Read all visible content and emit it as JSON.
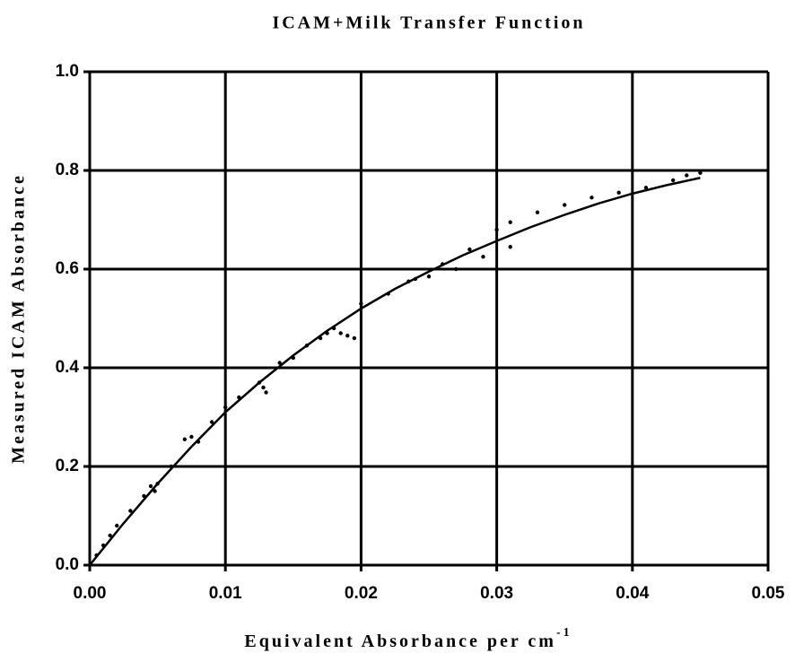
{
  "chart_data": {
    "type": "scatter",
    "title": "ICAM+Milk Transfer Function",
    "xlabel": "Equivalent Absorbance per cm",
    "xlabel_superscript": "-1",
    "ylabel": "Measured ICAM Absorbance",
    "xlim": [
      0,
      0.05
    ],
    "ylim": [
      0,
      1
    ],
    "xticks": [
      {
        "value": 0,
        "label": "0.00"
      },
      0.01,
      0.02,
      0.03,
      0.04,
      0.05
    ],
    "yticks": [
      {
        "value": 0,
        "label": "0.0"
      },
      0.2,
      0.4,
      0.6,
      0.8,
      {
        "value": 1,
        "label": "1.0"
      }
    ],
    "grid": true,
    "series": [
      {
        "type": "scatter",
        "color": "#000000",
        "x": [
          0.0005,
          0.001,
          0.0015,
          0.002,
          0.003,
          0.004,
          0.0045,
          0.0048,
          0.005,
          0.006,
          0.007,
          0.0075,
          0.008,
          0.009,
          0.01,
          0.011,
          0.0125,
          0.0128,
          0.013,
          0.014,
          0.015,
          0.016,
          0.017,
          0.0175,
          0.018,
          0.0185,
          0.019,
          0.0195,
          0.02,
          0.022,
          0.0235,
          0.024,
          0.025,
          0.026,
          0.027,
          0.028,
          0.029,
          0.03,
          0.031,
          0.031,
          0.033,
          0.035,
          0.037,
          0.039,
          0.041,
          0.043,
          0.044,
          0.045
        ],
        "values": [
          0.02,
          0.04,
          0.06,
          0.08,
          0.11,
          0.14,
          0.16,
          0.15,
          0.165,
          0.2,
          0.255,
          0.26,
          0.25,
          0.29,
          0.32,
          0.34,
          0.37,
          0.36,
          0.35,
          0.41,
          0.42,
          0.445,
          0.46,
          0.47,
          0.48,
          0.47,
          0.465,
          0.46,
          0.53,
          0.55,
          0.575,
          0.58,
          0.585,
          0.61,
          0.6,
          0.64,
          0.625,
          0.68,
          0.645,
          0.695,
          0.715,
          0.73,
          0.745,
          0.755,
          0.765,
          0.78,
          0.79,
          0.795
        ]
      },
      {
        "type": "line",
        "color": "#000000",
        "x": [
          0,
          0.0025,
          0.005,
          0.0075,
          0.01,
          0.0125,
          0.015,
          0.0175,
          0.02,
          0.0225,
          0.025,
          0.0275,
          0.03,
          0.0325,
          0.035,
          0.0375,
          0.04,
          0.0425,
          0.045
        ],
        "values": [
          0,
          0.085,
          0.165,
          0.24,
          0.31,
          0.37,
          0.425,
          0.475,
          0.52,
          0.56,
          0.595,
          0.628,
          0.657,
          0.685,
          0.71,
          0.733,
          0.753,
          0.77,
          0.785
        ]
      }
    ]
  }
}
